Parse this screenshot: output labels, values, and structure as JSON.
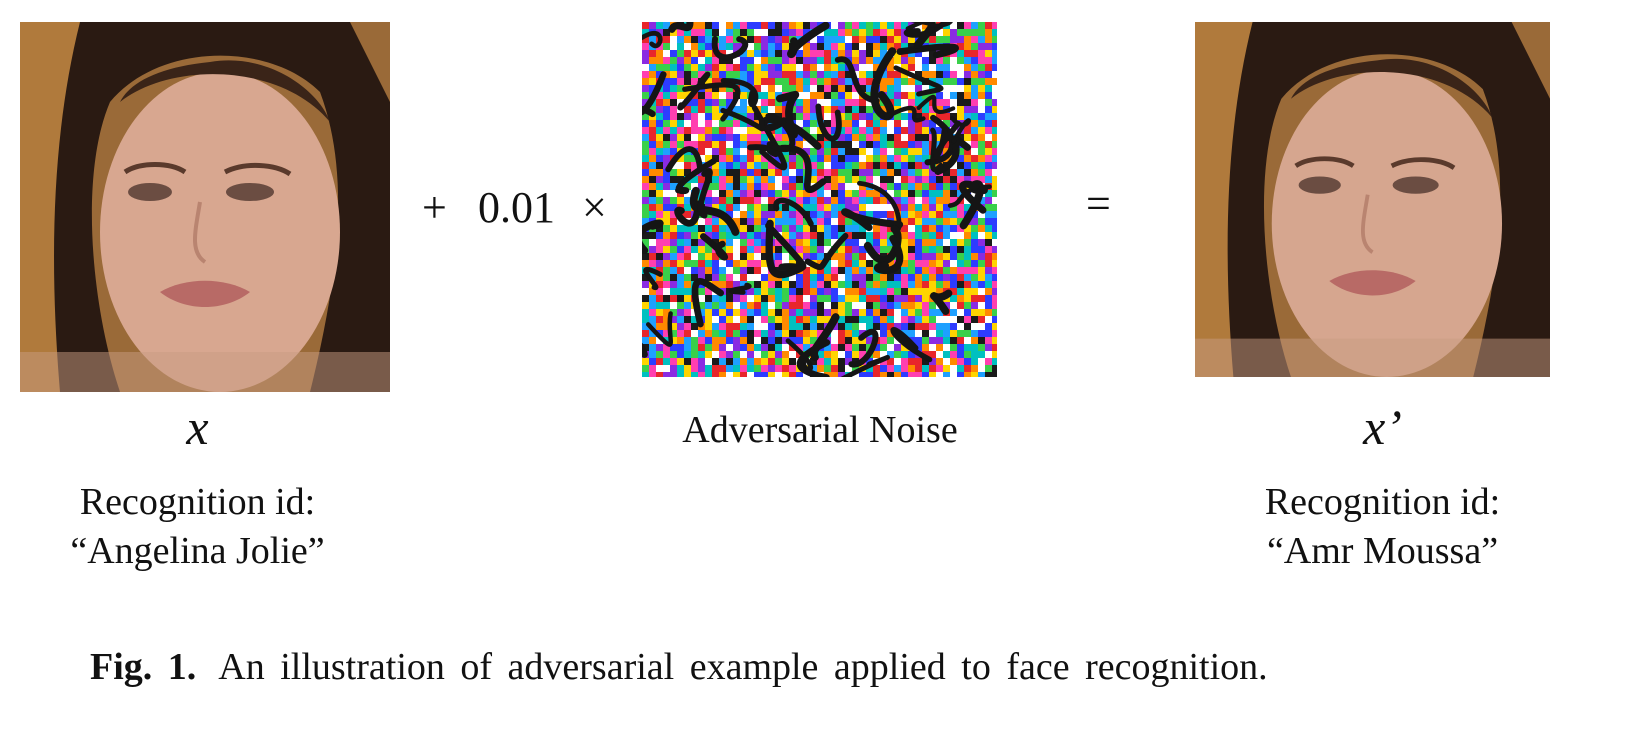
{
  "figure": {
    "left": {
      "symbol": "x",
      "label_line1": "Recognition id:",
      "label_line2": "“Angelina Jolie”"
    },
    "operator_plus": "+",
    "scale": "0.01",
    "operator_times": "×",
    "noise": {
      "label": "Adversarial Noise"
    },
    "operator_equals": "=",
    "right": {
      "symbol": "x’",
      "label_line1": "Recognition id:",
      "label_line2": "“Amr Moussa”"
    },
    "caption": {
      "prefix": "Fig. 1.",
      "text": "An illustration of adversarial example applied to face recognition."
    }
  }
}
